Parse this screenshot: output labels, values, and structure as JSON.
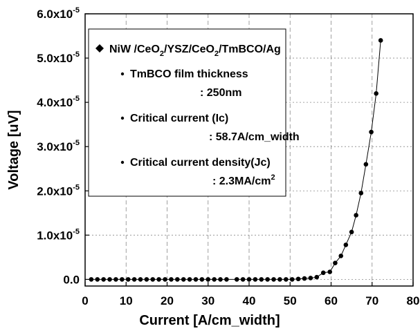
{
  "chart_data": {
    "type": "scatter",
    "x_label": "Current [A/cm_width]",
    "y_label": "Voltage [uV]",
    "xlim": [
      0,
      80
    ],
    "xticks": [
      0,
      10,
      20,
      30,
      40,
      50,
      60,
      70,
      80
    ],
    "ylim": [
      -1.5e-06,
      6e-05
    ],
    "yticks": [
      {
        "value": 0,
        "label": "0.0"
      },
      {
        "value": 1e-05,
        "label": "1.0x10-5"
      },
      {
        "value": 2e-05,
        "label": "2.0x10-5"
      },
      {
        "value": 3e-05,
        "label": "3.0x10-5"
      },
      {
        "value": 4e-05,
        "label": "4.0x10-5"
      },
      {
        "value": 5e-05,
        "label": "5.0x10-5"
      },
      {
        "value": 6e-05,
        "label": "6.0x10-5"
      }
    ],
    "grid": true,
    "series": [
      {
        "name": "NiW /CeO2/YSZ/CeO2/TmBCO/Ag",
        "color": "#000000",
        "x": [
          1.5,
          3,
          4.5,
          6,
          7.5,
          9,
          10.5,
          12,
          13.5,
          15,
          16.5,
          18,
          19.5,
          21,
          22.5,
          24,
          25.5,
          27,
          28.5,
          30,
          31.5,
          33,
          34.5,
          37,
          38.5,
          40,
          41.5,
          43,
          44.5,
          46,
          47.5,
          49,
          50.5,
          52,
          53.5,
          55,
          56.5,
          58.1,
          59.7,
          61,
          62.4,
          63.6,
          65,
          66.1,
          67.3,
          68.5,
          69.8,
          71,
          72.1
        ],
        "values": [
          0,
          0,
          0,
          0,
          0,
          0,
          0,
          0,
          0,
          0,
          0,
          0,
          0,
          0,
          0,
          0,
          0,
          0,
          0,
          0,
          0,
          0,
          0,
          0,
          0,
          0,
          0,
          0,
          0,
          0,
          0,
          0,
          0,
          1e-07,
          2e-07,
          3e-07,
          5e-07,
          1.5e-06,
          1.7e-06,
          3.7e-06,
          5.3e-06,
          7.8e-06,
          1.07e-05,
          1.45e-05,
          1.95e-05,
          2.6e-05,
          3.33e-05,
          4.2e-05,
          5.4e-05
        ]
      }
    ],
    "annotations": [
      {
        "label": "TmBCO film thickness",
        "value": ": 250nm"
      },
      {
        "label": "Critical current (Ic)",
        "value": ": 58.7A/cm_width"
      },
      {
        "label": "Critical current density(Jc)",
        "value": ": 2.3MA/cm2"
      }
    ]
  }
}
